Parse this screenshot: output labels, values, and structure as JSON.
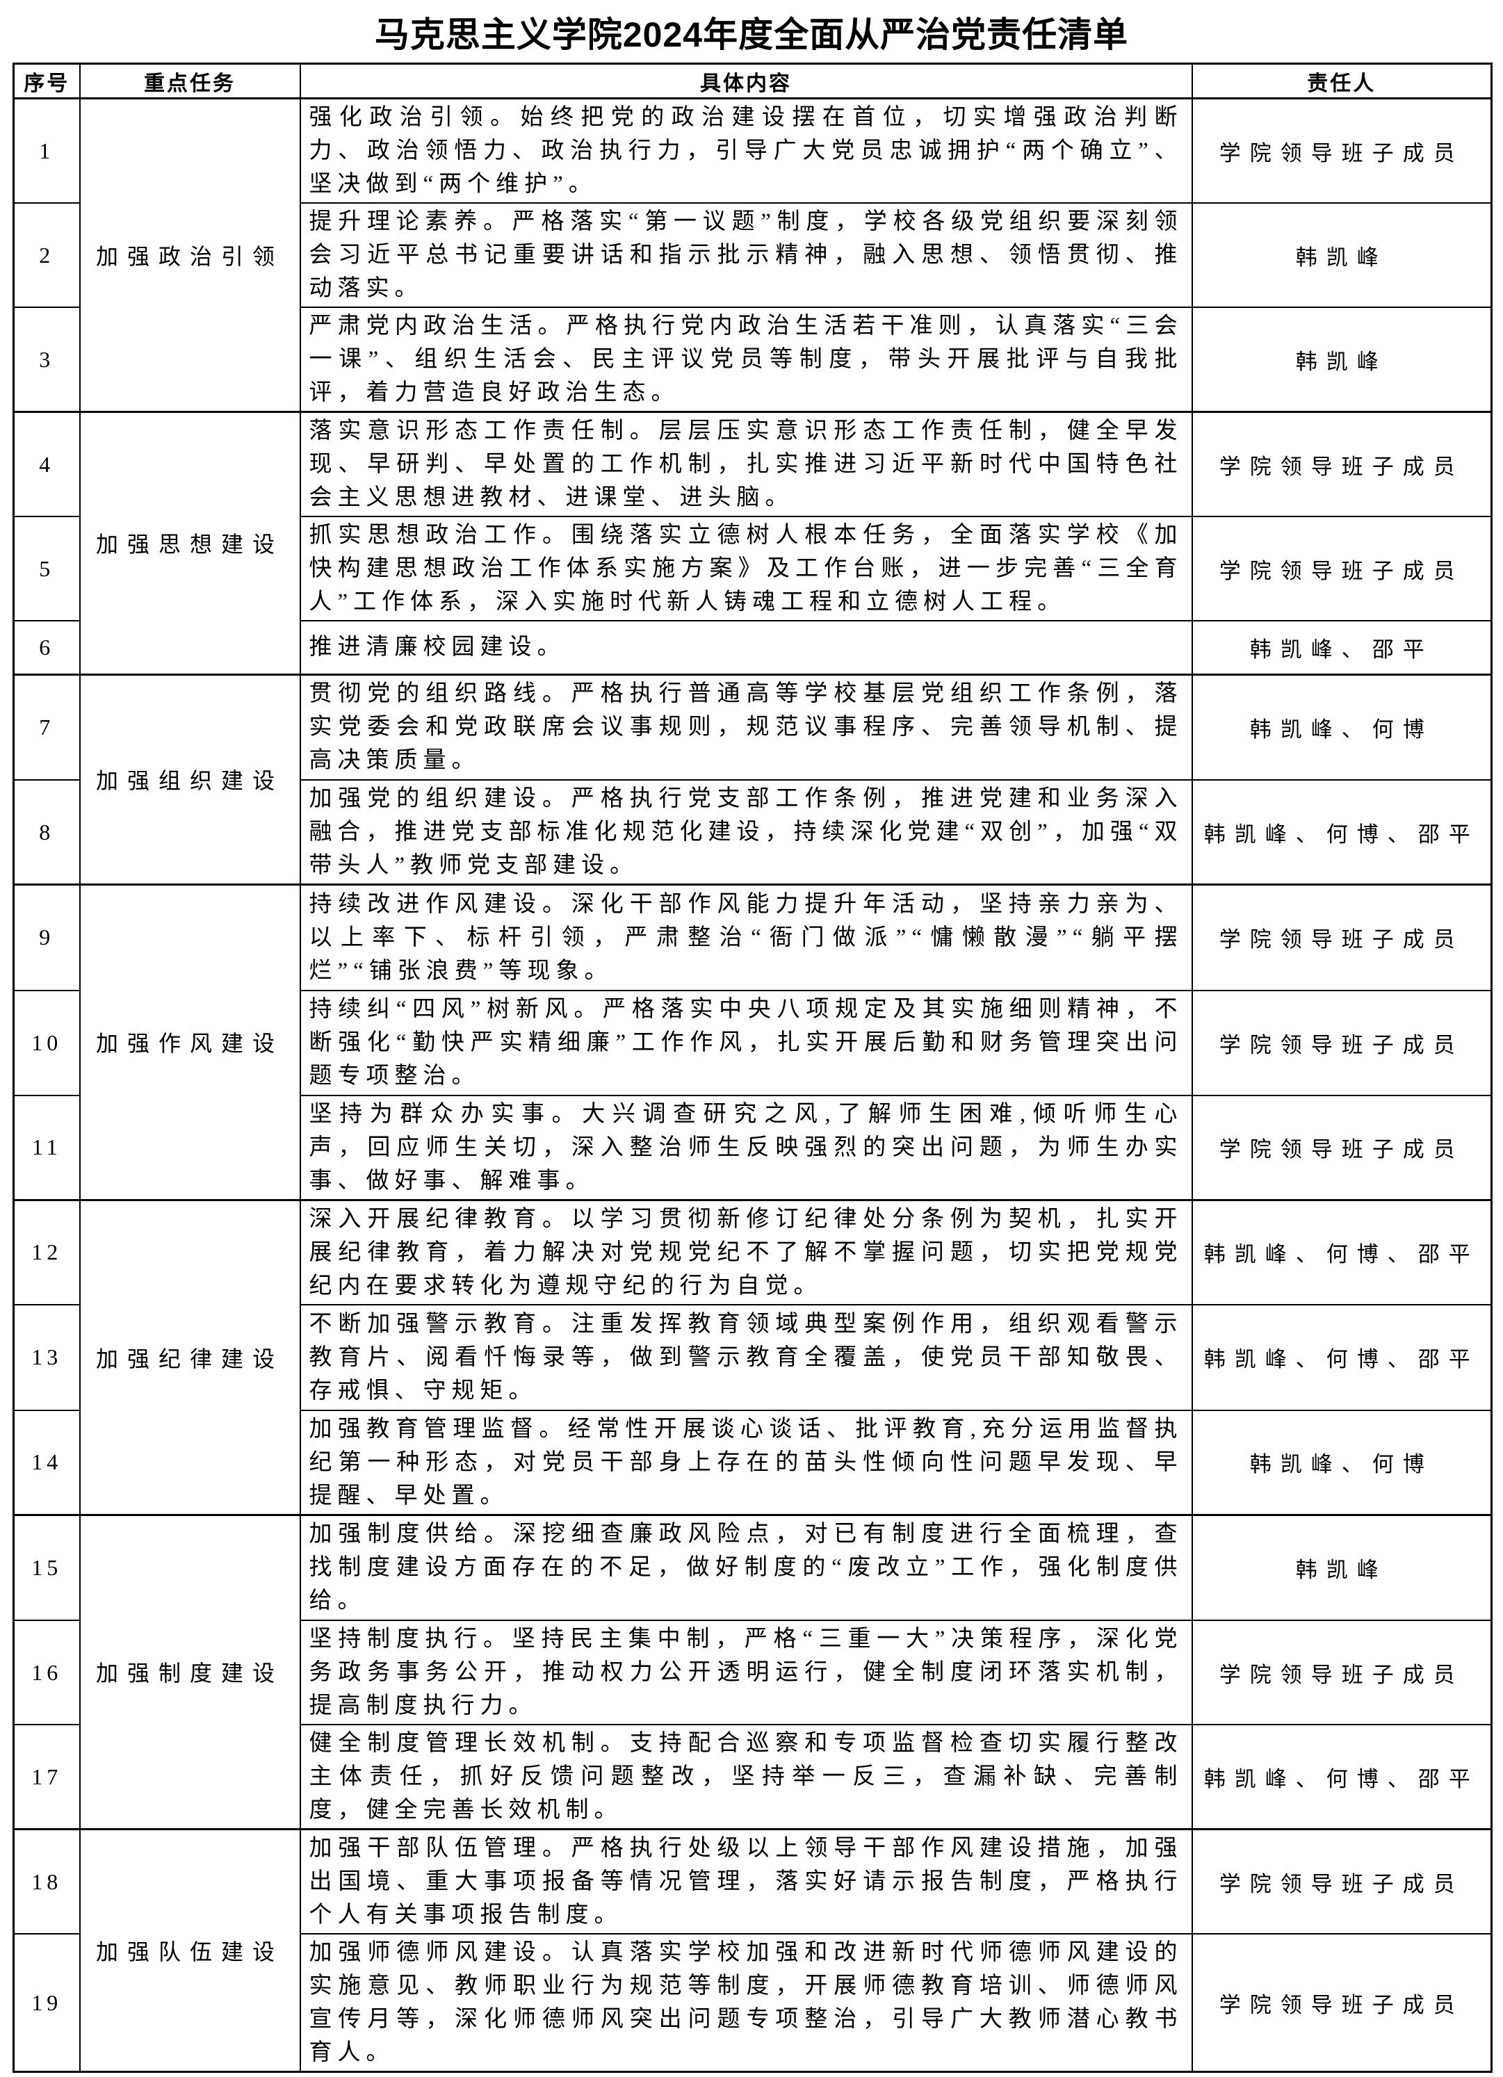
{
  "page": {
    "title": "马克思主义学院2024年度全面从严治党责任清单"
  },
  "table": {
    "headers": {
      "no": "序号",
      "task": "重点任务",
      "content": "具体内容",
      "person": "责任人"
    },
    "groups": [
      {
        "task": "加强政治引领",
        "rows": [
          {
            "no": "1",
            "height": 150,
            "content": "强化政治引领。始终把党的政治建设摆在首位，切实增强政治判断力、政治领悟力、政治执行力，引导广大党员忠诚拥护“两个确立”、坚决做到“两个维护”。",
            "person": "学院领导班子成员"
          },
          {
            "no": "2",
            "height": 150,
            "content": "提升理论素养。严格落实“第一议题”制度，学校各级党组织要深刻领会习近平总书记重要讲话和指示批示精神，融入思想、领悟贯彻、推动落实。",
            "person": "韩凯峰"
          },
          {
            "no": "3",
            "height": 150,
            "content": "严肃党内政治生活。严格执行党内政治生活若干准则，认真落实“三会一课”、组织生活会、民主评议党员等制度，带头开展批评与自我批评，着力营造良好政治生态。",
            "person": "韩凯峰"
          }
        ]
      },
      {
        "task": "加强思想建设",
        "rows": [
          {
            "no": "4",
            "height": 150,
            "content": "落实意识形态工作责任制。层层压实意识形态工作责任制，健全早发现、早研判、早处置的工作机制，扎实推进习近平新时代中国特色社会主义思想进教材、进课堂、进头脑。",
            "person": "学院领导班子成员"
          },
          {
            "no": "5",
            "height": 150,
            "content": "抓实思想政治工作。围绕落实立德树人根本任务，全面落实学校《加快构建思想政治工作体系实施方案》及工作台账，进一步完善“三全育人”工作体系，深入实施时代新人铸魂工程和立德树人工程。",
            "person": "学院领导班子成员"
          },
          {
            "no": "6",
            "height": 77,
            "content": "推进清廉校园建设。",
            "person": "韩凯峰、邵平"
          }
        ]
      },
      {
        "task": "加强组织建设",
        "rows": [
          {
            "no": "7",
            "height": 152,
            "content": "贯彻党的组织路线。严格执行普通高等学校基层党组织工作条例，落实党委会和党政联席会议事规则，规范议事程序、完善领导机制、提高决策质量。",
            "person": "韩凯峰、何博"
          },
          {
            "no": "8",
            "height": 148,
            "content": "加强党的组织建设。严格执行党支部工作条例，推进党建和业务深入融合，推进党支部标准化规范化建设，持续深化党建“双创”，加强“双带头人”教师党支部建设。",
            "person": "韩凯峰、何博、邵平"
          }
        ]
      },
      {
        "task": "加强作风建设",
        "rows": [
          {
            "no": "9",
            "height": 152,
            "content": "持续改进作风建设。深化干部作风能力提升年活动，坚持亲力亲为、以上率下、标杆引领，严肃整治“衙门做派”“慵懒散漫”“躺平摆烂”“铺张浪费”等现象。",
            "person": "学院领导班子成员"
          },
          {
            "no": "10",
            "height": 151,
            "content": "持续纠“四风”树新风。严格落实中央八项规定及其实施细则精神，不断强化“勤快严实精细廉”工作作风，扎实开展后勤和财务管理突出问题专项整治。",
            "person": "学院领导班子成员"
          },
          {
            "no": "11",
            "height": 150,
            "content": "坚持为群众办实事。大兴调查研究之风,了解师生困难,倾听师生心声，回应师生关切，深入整治师生反映强烈的突出问题，为师生办实事、做好事、解难事。",
            "person": "学院领导班子成员"
          }
        ]
      },
      {
        "task": "加强纪律建设",
        "rows": [
          {
            "no": "12",
            "height": 147,
            "content": "深入开展纪律教育。以学习贯彻新修订纪律处分条例为契机，扎实开展纪律教育，着力解决对党规党纪不了解不掌握问题，切实把党规党纪内在要求转化为遵规守纪的行为自觉。",
            "person": "韩凯峰、何博、邵平"
          },
          {
            "no": "13",
            "height": 152,
            "content": "不断加强警示教育。注重发挥教育领域典型案例作用，组织观看警示教育片、阅看忏悔录等，做到警示教育全覆盖，使党员干部知敬畏、存戒惧、守规矩。",
            "person": "韩凯峰、何博、邵平"
          },
          {
            "no": "14",
            "height": 148,
            "content": "加强教育管理监督。经常性开展谈心谈话、批评教育,充分运用监督执纪第一种形态，对党员干部身上存在的苗头性倾向性问题早发现、早提醒、早处置。",
            "person": "韩凯峰、何博"
          }
        ]
      },
      {
        "task": "加强制度建设",
        "rows": [
          {
            "no": "15",
            "height": 152,
            "content": "加强制度供给。深挖细查廉政风险点，对已有制度进行全面梳理，查找制度建设方面存在的不足，做好制度的“废改立”工作，强化制度供给。",
            "person": "韩凯峰"
          },
          {
            "no": "16",
            "height": 150,
            "content": "坚持制度执行。坚持民主集中制，严格“三重一大”决策程序，深化党务政务事务公开，推动权力公开透明运行，健全制度闭环落实机制，提高制度执行力。",
            "person": "学院领导班子成员"
          },
          {
            "no": "17",
            "height": 148,
            "content": "健全制度管理长效机制。支持配合巡察和专项监督检查切实履行整改主体责任，抓好反馈问题整改，坚持举一反三，查漏补缺、完善制度，健全完善长效机制。",
            "person": "韩凯峰、何博、邵平"
          }
        ]
      },
      {
        "task": "加强队伍建设",
        "rows": [
          {
            "no": "18",
            "height": 150,
            "content": "加强干部队伍管理。严格执行处级以上领导干部作风建设措施，加强出国境、重大事项报备等情况管理，落实好请示报告制度，严格执行个人有关事项报告制度。",
            "person": "学院领导班子成员"
          },
          {
            "no": "19",
            "height": 192,
            "content": "加强师德师风建设。认真落实学校加强和改进新时代师德师风建设的实施意见、教师职业行为规范等制度，开展师德教育培训、师德师风宣传月等，深化师德师风突出问题专项整治，引导广大教师潜心教书育人。",
            "person": "学院领导班子成员"
          }
        ]
      }
    ]
  }
}
